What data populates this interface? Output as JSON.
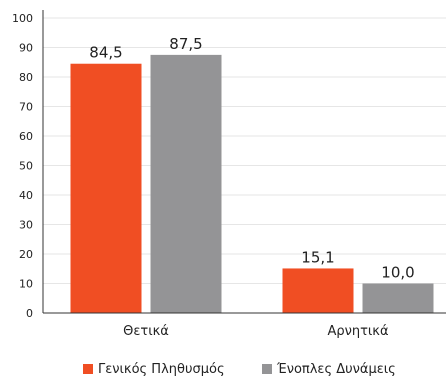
{
  "chart_data": {
    "type": "bar",
    "categories": [
      "Θετικά",
      "Αρνητικά"
    ],
    "series": [
      {
        "name": "Γενικός Πληθυσμός",
        "values": [
          84.5,
          15.1
        ],
        "labels": [
          "84,5",
          "15,1"
        ],
        "color": "#f04e23"
      },
      {
        "name": "Ένοπλες Δυνάμεις",
        "values": [
          87.5,
          10.0
        ],
        "labels": [
          "87,5",
          "10,0"
        ],
        "color": "#949496"
      }
    ],
    "ylim": [
      0,
      100
    ],
    "yticks": [
      0,
      10,
      20,
      30,
      40,
      50,
      60,
      70,
      80,
      90,
      100
    ],
    "grid": true,
    "legend_position": "bottom",
    "title": "",
    "xlabel": "",
    "ylabel": ""
  }
}
